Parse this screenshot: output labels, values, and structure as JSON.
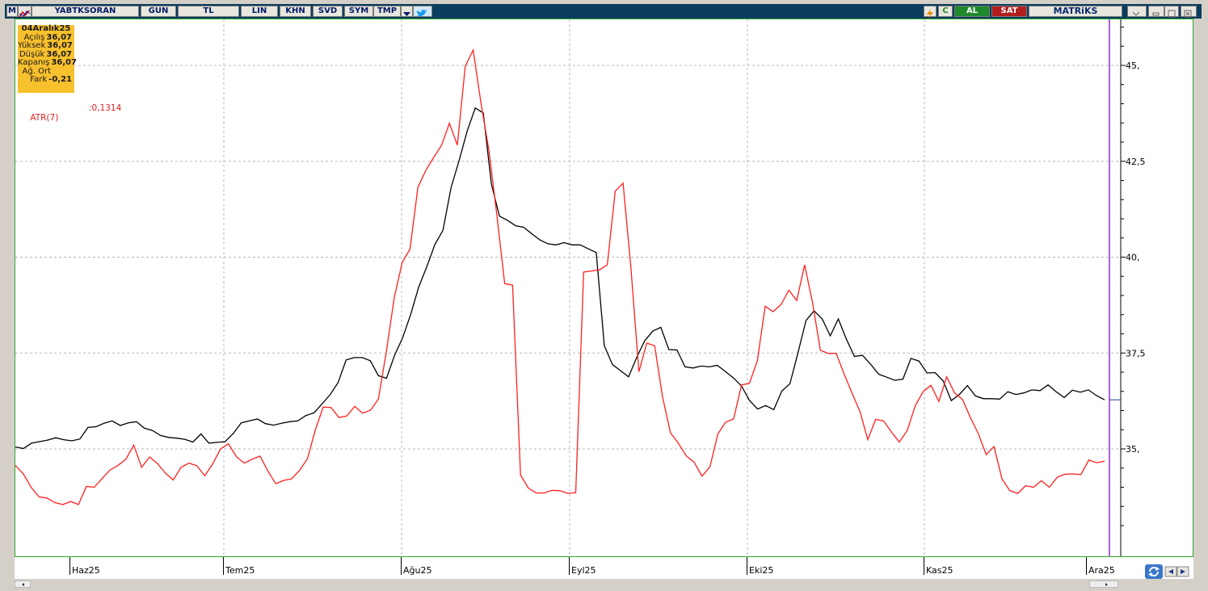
{
  "toolbar": {
    "logo": "M",
    "symbol": "YABTKSORAN",
    "period": "GUN",
    "currency": "TL",
    "buttons": [
      "LIN",
      "KHN",
      "SVD",
      "SYM",
      "TMP"
    ],
    "c_label": "C",
    "buy_label": "AL",
    "sell_label": "SAT",
    "brand": "MATRiKS",
    "colors": {
      "bar": "#0b3d5e",
      "buy": "#1f8a2c",
      "sell": "#b01e1e"
    }
  },
  "info": {
    "date": "04Aralık25",
    "rows": [
      {
        "label": "Açılış",
        "value": "36,07"
      },
      {
        "label": "Yüksek",
        "value": "36,07"
      },
      {
        "label": "Düşük",
        "value": "36,07"
      },
      {
        "label": "Kapanış",
        "value": "36,07"
      },
      {
        "label": "Ağ. Ort",
        "value": ""
      },
      {
        "label": "Fark",
        "value": "-0,21"
      }
    ]
  },
  "indicator": {
    "label": "ATR(7)",
    "value": ":0,1314"
  },
  "chart_data": {
    "type": "line",
    "x_labels": [
      "Haz25",
      "Tem25",
      "Ağu25",
      "Eyl25",
      "Eki25",
      "Kas25",
      "Ara25"
    ],
    "y_ticks": [
      "45,",
      "42,5",
      "40,",
      "37,5",
      "35,"
    ],
    "ylim": [
      32.2,
      46.2
    ],
    "grid": true,
    "series": [
      {
        "color": "#000000",
        "values": [
          35.05,
          35.01,
          35.15,
          35.19,
          35.23,
          35.29,
          35.24,
          35.21,
          35.26,
          35.56,
          35.58,
          35.67,
          35.73,
          35.61,
          35.68,
          35.71,
          35.54,
          35.48,
          35.35,
          35.3,
          35.28,
          35.25,
          35.18,
          35.39,
          35.15,
          35.17,
          35.19,
          35.4,
          35.68,
          35.73,
          35.78,
          35.66,
          35.62,
          35.67,
          35.71,
          35.73,
          35.87,
          35.94,
          36.17,
          36.41,
          36.73,
          37.32,
          37.38,
          37.38,
          37.3,
          36.91,
          36.84,
          37.44,
          37.9,
          38.51,
          39.23,
          39.75,
          40.33,
          40.7,
          41.81,
          42.52,
          43.29,
          43.89,
          43.76,
          41.91,
          41.07,
          40.96,
          40.82,
          40.78,
          40.61,
          40.45,
          40.35,
          40.32,
          40.38,
          40.32,
          40.32,
          40.22,
          40.12,
          37.69,
          37.2,
          37.04,
          36.88,
          37.38,
          37.82,
          38.07,
          38.17,
          37.59,
          37.58,
          37.14,
          37.11,
          37.16,
          37.14,
          37.18,
          37.02,
          36.85,
          36.64,
          36.26,
          36.04,
          36.13,
          36.02,
          36.51,
          36.7,
          37.51,
          38.35,
          38.6,
          38.39,
          37.95,
          38.39,
          37.86,
          37.41,
          37.44,
          37.21,
          36.95,
          36.87,
          36.79,
          36.82,
          37.36,
          37.29,
          36.98,
          36.99,
          36.77,
          36.26,
          36.42,
          36.65,
          36.38,
          36.31,
          36.31,
          36.3,
          36.49,
          36.42,
          36.46,
          36.54,
          36.52,
          36.67,
          36.49,
          36.34,
          36.53,
          36.48,
          36.54,
          36.39,
          36.28
        ]
      },
      {
        "color": "#ff2020",
        "values": [
          34.57,
          34.35,
          34.0,
          33.75,
          33.72,
          33.6,
          33.55,
          33.63,
          33.55,
          34.02,
          34.0,
          34.23,
          34.45,
          34.57,
          34.73,
          35.1,
          34.52,
          34.79,
          34.62,
          34.37,
          34.19,
          34.52,
          34.63,
          34.56,
          34.3,
          34.61,
          35.0,
          35.13,
          34.8,
          34.63,
          34.73,
          34.81,
          34.42,
          34.09,
          34.18,
          34.22,
          34.44,
          34.74,
          35.49,
          36.09,
          36.08,
          35.82,
          35.86,
          36.11,
          35.93,
          36.01,
          36.3,
          37.53,
          38.94,
          39.85,
          40.21,
          41.82,
          42.26,
          42.6,
          42.92,
          43.49,
          42.92,
          44.98,
          45.4,
          44.01,
          42.78,
          41.1,
          39.31,
          39.27,
          34.32,
          33.98,
          33.85,
          33.85,
          33.92,
          33.91,
          33.84,
          33.86,
          39.61,
          39.64,
          39.67,
          39.8,
          41.72,
          41.93,
          39.7,
          37.01,
          37.76,
          37.69,
          36.35,
          35.42,
          35.15,
          34.82,
          34.65,
          34.29,
          34.53,
          35.39,
          35.7,
          35.78,
          36.67,
          36.71,
          37.29,
          38.72,
          38.58,
          38.76,
          39.14,
          38.87,
          39.8,
          38.81,
          37.57,
          37.49,
          37.49,
          36.95,
          36.46,
          35.98,
          35.24,
          35.77,
          35.73,
          35.44,
          35.18,
          35.48,
          36.12,
          36.49,
          36.66,
          36.24,
          36.88,
          36.46,
          36.29,
          35.82,
          35.4,
          34.85,
          35.06,
          34.22,
          33.91,
          33.84,
          34.04,
          34.0,
          34.17,
          34.0,
          34.26,
          34.34,
          34.35,
          34.33,
          34.71,
          34.64,
          34.68
        ]
      }
    ]
  }
}
